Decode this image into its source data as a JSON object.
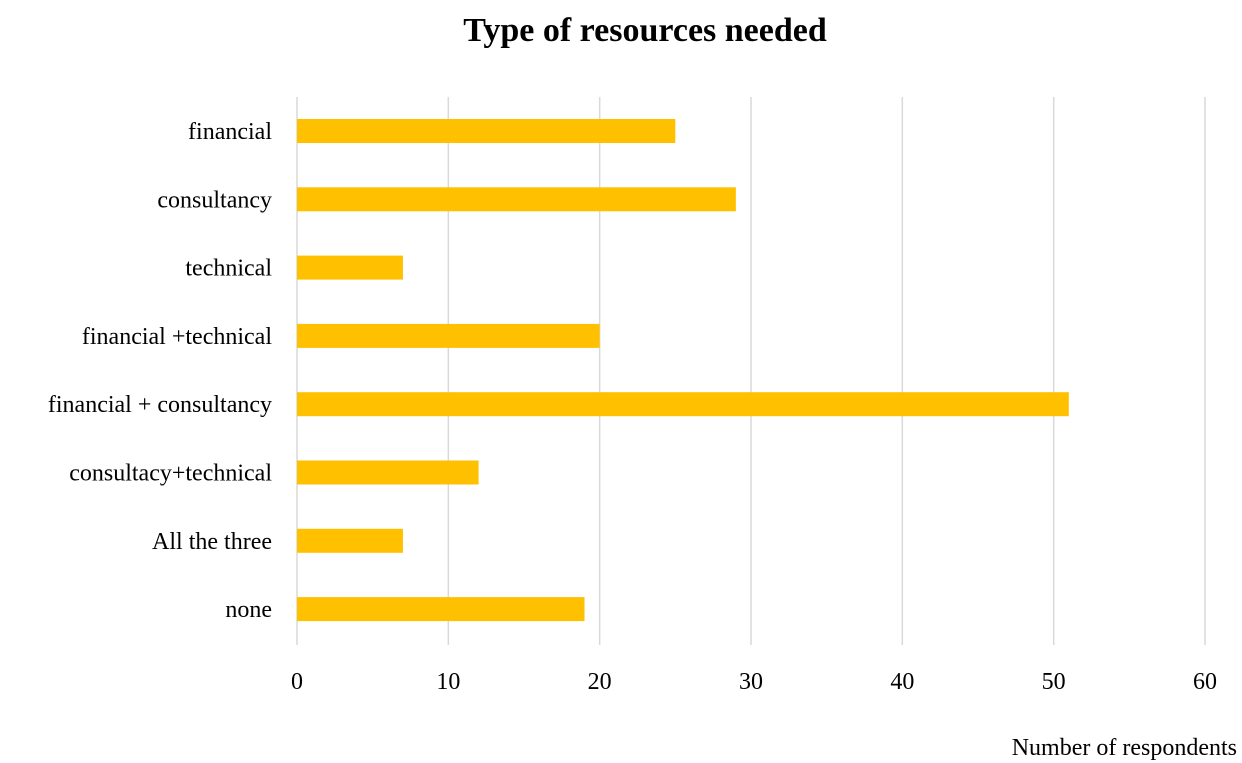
{
  "chart_data": {
    "type": "bar",
    "orientation": "horizontal",
    "title": "Type of resources needed",
    "xlabel": "Number of respondents",
    "ylabel": "",
    "categories": [
      "financial",
      "consultancy",
      "technical",
      "financial +technical",
      "financial + consultancy",
      "consultacy+technical",
      "All the three",
      "none"
    ],
    "values": [
      25,
      29,
      7,
      20,
      51,
      12,
      7,
      19
    ],
    "xlim": [
      0,
      60
    ],
    "xticks": [
      "0",
      "10",
      "20",
      "30",
      "40",
      "50",
      "60"
    ],
    "grid": true,
    "legend": "none",
    "colors": {
      "bar": "#ffc000",
      "grid": "#d9d9d9",
      "text": "#000000"
    }
  }
}
